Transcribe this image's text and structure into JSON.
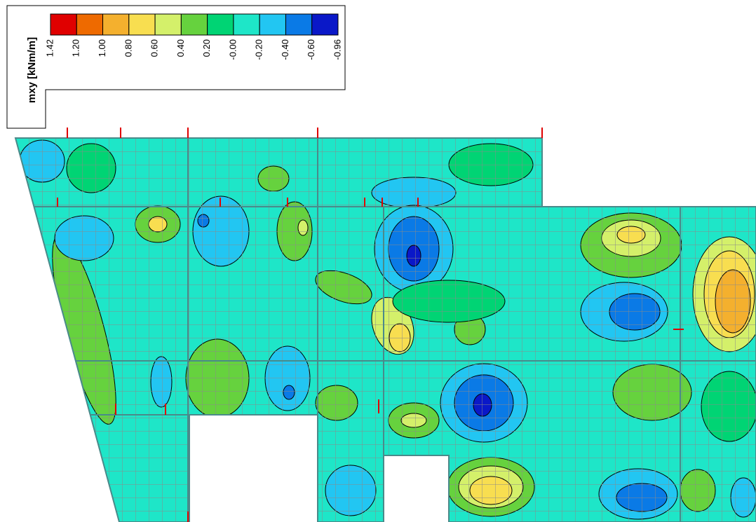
{
  "legend": {
    "title": "mxy [kNm/m]",
    "labels": [
      "1.42",
      "1.20",
      "1.00",
      "0.80",
      "0.60",
      "0.40",
      "0.20",
      "-0.00",
      "-0.20",
      "-0.40",
      "-0.60",
      "-0.96"
    ],
    "colors": [
      "#e00000",
      "#ee6a00",
      "#f4b02e",
      "#f8de50",
      "#d4f06a",
      "#66d23e",
      "#00d474",
      "#1ee6c8",
      "#22c6f2",
      "#0a7ae6",
      "#0a18c8"
    ]
  }
}
